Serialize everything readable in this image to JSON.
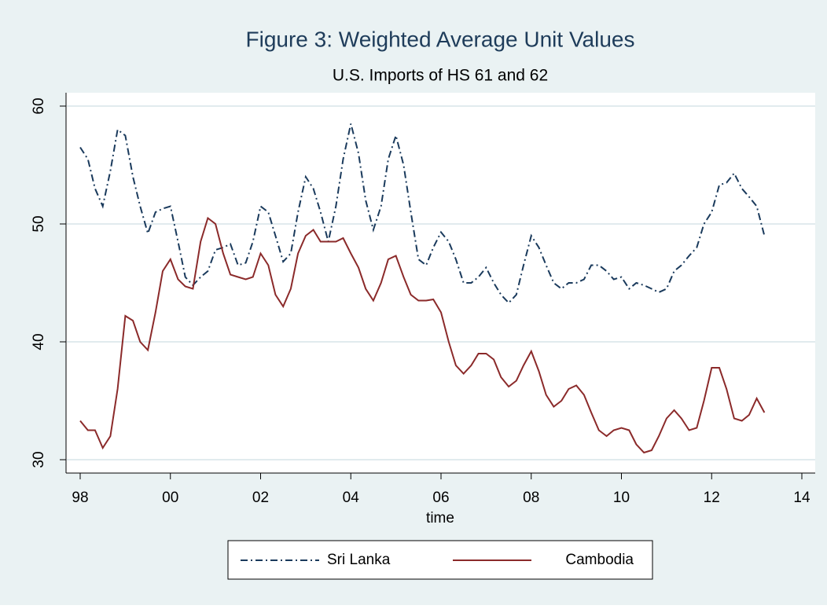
{
  "chart_data": {
    "type": "line",
    "title": "Figure 3: Weighted Average Unit Values",
    "subtitle": "U.S. Imports of HS 61 and 62",
    "x_label": "time",
    "x": [
      1998,
      1998.17,
      1998.33,
      1998.5,
      1998.67,
      1998.83,
      1999,
      1999.17,
      1999.33,
      1999.5,
      1999.67,
      1999.83,
      2000,
      2000.17,
      2000.33,
      2000.5,
      2000.67,
      2000.83,
      2001,
      2001.17,
      2001.33,
      2001.5,
      2001.67,
      2001.83,
      2002,
      2002.17,
      2002.33,
      2002.5,
      2002.67,
      2002.83,
      2003,
      2003.17,
      2003.33,
      2003.5,
      2003.67,
      2003.83,
      2004,
      2004.17,
      2004.33,
      2004.5,
      2004.67,
      2004.83,
      2005,
      2005.17,
      2005.33,
      2005.5,
      2005.67,
      2005.83,
      2006,
      2006.17,
      2006.33,
      2006.5,
      2006.67,
      2006.83,
      2007,
      2007.17,
      2007.33,
      2007.5,
      2007.67,
      2007.83,
      2008,
      2008.17,
      2008.33,
      2008.5,
      2008.67,
      2008.83,
      2009,
      2009.17,
      2009.33,
      2009.5,
      2009.67,
      2009.83,
      2010,
      2010.17,
      2010.33,
      2010.5,
      2010.67,
      2010.83,
      2011,
      2011.17,
      2011.33,
      2011.5,
      2011.67,
      2011.83,
      2012,
      2012.17,
      2012.33,
      2012.5,
      2012.67,
      2012.83,
      2013,
      2013.17
    ],
    "series": [
      {
        "name": "Sri Lanka",
        "color": "#1a3a5c",
        "dash": "dashdot",
        "values": [
          56.5,
          55.5,
          53,
          51.5,
          54.5,
          58,
          57.5,
          54,
          51.5,
          49.2,
          51,
          51.3,
          51.5,
          48.5,
          45.5,
          44.8,
          45.5,
          46,
          47.8,
          48,
          48.3,
          46.5,
          46.7,
          48.5,
          51.5,
          51,
          49,
          46.8,
          47.5,
          51,
          54,
          53,
          51,
          48.5,
          51.5,
          55.5,
          58.5,
          56,
          52,
          49.5,
          51.5,
          55.5,
          57.5,
          55,
          51,
          47,
          46.5,
          48,
          49.3,
          48.5,
          47,
          45,
          45,
          45.5,
          46.3,
          45,
          44,
          43.3,
          44,
          46.5,
          49,
          48,
          46.5,
          45,
          44.5,
          45,
          45,
          45.3,
          46.5,
          46.5,
          46,
          45.3,
          45.5,
          44.5,
          45,
          44.8,
          44.5,
          44.2,
          44.5,
          46,
          46.5,
          47.3,
          48,
          50,
          51,
          53.3,
          53.5,
          54.3,
          53,
          52.3,
          51.5,
          49
        ]
      },
      {
        "name": "Cambodia",
        "color": "#8b2a2a",
        "dash": "solid",
        "values": [
          33.3,
          32.5,
          32.5,
          31,
          32,
          36,
          42.2,
          41.8,
          40,
          39.3,
          42.5,
          46,
          47,
          45.3,
          44.7,
          44.5,
          48.5,
          50.5,
          50,
          47.5,
          45.7,
          45.5,
          45.3,
          45.5,
          47.5,
          46.5,
          44,
          43,
          44.5,
          47.5,
          49,
          49.5,
          48.5,
          48.5,
          48.5,
          48.8,
          47.5,
          46.3,
          44.5,
          43.5,
          45,
          47,
          47.3,
          45.5,
          44,
          43.5,
          43.5,
          43.6,
          42.5,
          40,
          38,
          37.3,
          38,
          39,
          39,
          38.5,
          37,
          36.2,
          36.7,
          38,
          39.2,
          37.5,
          35.5,
          34.5,
          35,
          36,
          36.3,
          35.5,
          34,
          32.5,
          32,
          32.5,
          32.7,
          32.5,
          31.3,
          30.6,
          30.8,
          32,
          33.5,
          34.2,
          33.5,
          32.5,
          32.7,
          35,
          37.8,
          37.8,
          36,
          33.5,
          33.3,
          33.8,
          35.2,
          34
        ]
      }
    ],
    "xlim": [
      1998,
      2014
    ],
    "xticks": [
      {
        "value": 1998,
        "label": "98"
      },
      {
        "value": 2000,
        "label": "00"
      },
      {
        "value": 2002,
        "label": "02"
      },
      {
        "value": 2004,
        "label": "04"
      },
      {
        "value": 2006,
        "label": "06"
      },
      {
        "value": 2008,
        "label": "08"
      },
      {
        "value": 2010,
        "label": "10"
      },
      {
        "value": 2012,
        "label": "12"
      },
      {
        "value": 2014,
        "label": "14"
      }
    ],
    "ylim": [
      30,
      60
    ],
    "yticks": [
      30,
      40,
      50,
      60
    ],
    "grid": true,
    "legend": "bottom"
  }
}
